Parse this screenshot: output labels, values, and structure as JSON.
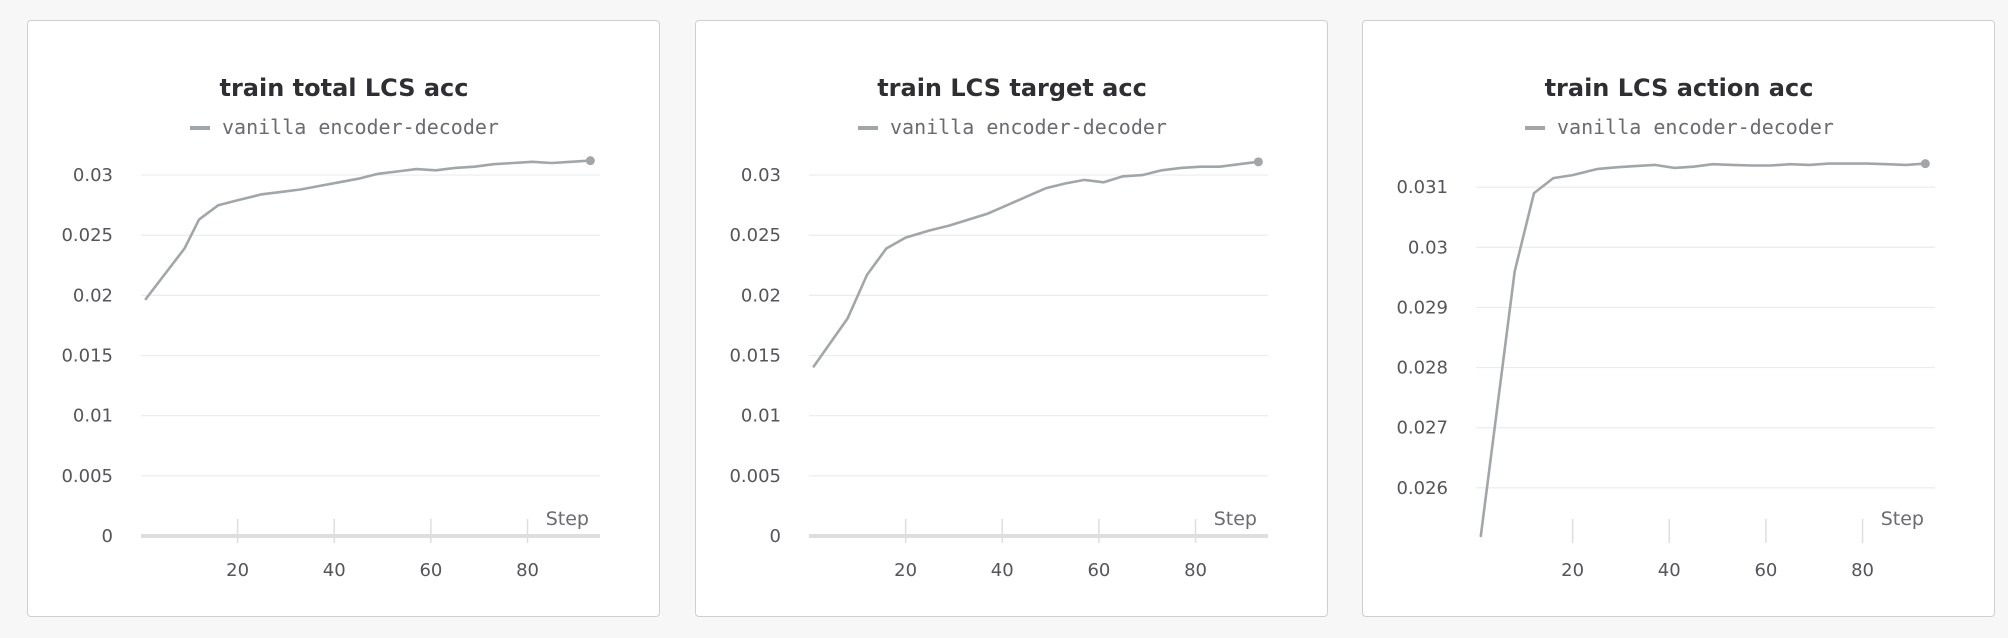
{
  "colors": {
    "line": "#a2a6a9",
    "grid": "#ececec",
    "axis": "#dedede"
  },
  "chart_data": [
    {
      "type": "line",
      "title": "train total LCS acc",
      "xlabel": "Step",
      "xlim": [
        0,
        95
      ],
      "xticks": [
        20,
        40,
        60,
        80
      ],
      "ylim": [
        0,
        0.0325
      ],
      "yticks": [
        {
          "v": 0,
          "label": "0"
        },
        {
          "v": 0.005,
          "label": "0.005"
        },
        {
          "v": 0.01,
          "label": "0.01"
        },
        {
          "v": 0.015,
          "label": "0.015"
        },
        {
          "v": 0.02,
          "label": "0.02"
        },
        {
          "v": 0.025,
          "label": "0.025"
        },
        {
          "v": 0.03,
          "label": "0.03"
        }
      ],
      "x_axis_line": true,
      "grid": true,
      "legend": "top-center",
      "series": [
        {
          "name": "vanilla encoder-decoder",
          "x": [
            1,
            9,
            12,
            16,
            20,
            25,
            29,
            33,
            37,
            41,
            45,
            49,
            53,
            57,
            61,
            65,
            69,
            73,
            77,
            81,
            85,
            89,
            93
          ],
          "y": [
            0.0197,
            0.0239,
            0.0263,
            0.0275,
            0.0279,
            0.0284,
            0.0286,
            0.0288,
            0.0291,
            0.0294,
            0.0297,
            0.0301,
            0.0303,
            0.0305,
            0.0304,
            0.0306,
            0.0307,
            0.0309,
            0.031,
            0.0311,
            0.031,
            0.0311,
            0.0312
          ]
        }
      ]
    },
    {
      "type": "line",
      "title": "train LCS target acc",
      "xlabel": "Step",
      "xlim": [
        0,
        95
      ],
      "xticks": [
        20,
        40,
        60,
        80
      ],
      "ylim": [
        0,
        0.0325
      ],
      "yticks": [
        {
          "v": 0,
          "label": "0"
        },
        {
          "v": 0.005,
          "label": "0.005"
        },
        {
          "v": 0.01,
          "label": "0.01"
        },
        {
          "v": 0.015,
          "label": "0.015"
        },
        {
          "v": 0.02,
          "label": "0.02"
        },
        {
          "v": 0.025,
          "label": "0.025"
        },
        {
          "v": 0.03,
          "label": "0.03"
        }
      ],
      "x_axis_line": true,
      "grid": true,
      "legend": "top-center",
      "series": [
        {
          "name": "vanilla encoder-decoder",
          "x": [
            1,
            8,
            12,
            16,
            20,
            25,
            29,
            33,
            37,
            41,
            45,
            49,
            53,
            57,
            61,
            65,
            69,
            73,
            77,
            81,
            85,
            89,
            93
          ],
          "y": [
            0.0141,
            0.0181,
            0.0217,
            0.0239,
            0.0248,
            0.0254,
            0.0258,
            0.0263,
            0.0268,
            0.0275,
            0.0282,
            0.0289,
            0.0293,
            0.0296,
            0.0294,
            0.0299,
            0.03,
            0.0304,
            0.0306,
            0.0307,
            0.0307,
            0.0309,
            0.0311
          ]
        }
      ]
    },
    {
      "type": "line",
      "title": "train LCS action acc",
      "xlabel": "Step",
      "xlim": [
        0,
        95
      ],
      "xticks": [
        20,
        40,
        60,
        80
      ],
      "ylim": [
        0.0252,
        0.0317
      ],
      "yticks": [
        {
          "v": 0.026,
          "label": "0.026"
        },
        {
          "v": 0.027,
          "label": "0.027"
        },
        {
          "v": 0.028,
          "label": "0.028"
        },
        {
          "v": 0.029,
          "label": "0.029"
        },
        {
          "v": 0.03,
          "label": "0.03"
        },
        {
          "v": 0.031,
          "label": "0.031"
        }
      ],
      "x_axis_line": false,
      "grid": true,
      "legend": "top-center",
      "series": [
        {
          "name": "vanilla encoder-decoder",
          "x": [
            1,
            8,
            12,
            16,
            20,
            25,
            29,
            33,
            37,
            41,
            45,
            49,
            53,
            57,
            61,
            65,
            69,
            73,
            77,
            81,
            85,
            89,
            93
          ],
          "y": [
            0.0252,
            0.0296,
            0.0309,
            0.03115,
            0.0312,
            0.0313,
            0.03133,
            0.03135,
            0.03137,
            0.03132,
            0.03134,
            0.03138,
            0.03137,
            0.03136,
            0.03136,
            0.03138,
            0.03137,
            0.03139,
            0.03139,
            0.03139,
            0.03138,
            0.03137,
            0.03139
          ]
        }
      ]
    }
  ]
}
